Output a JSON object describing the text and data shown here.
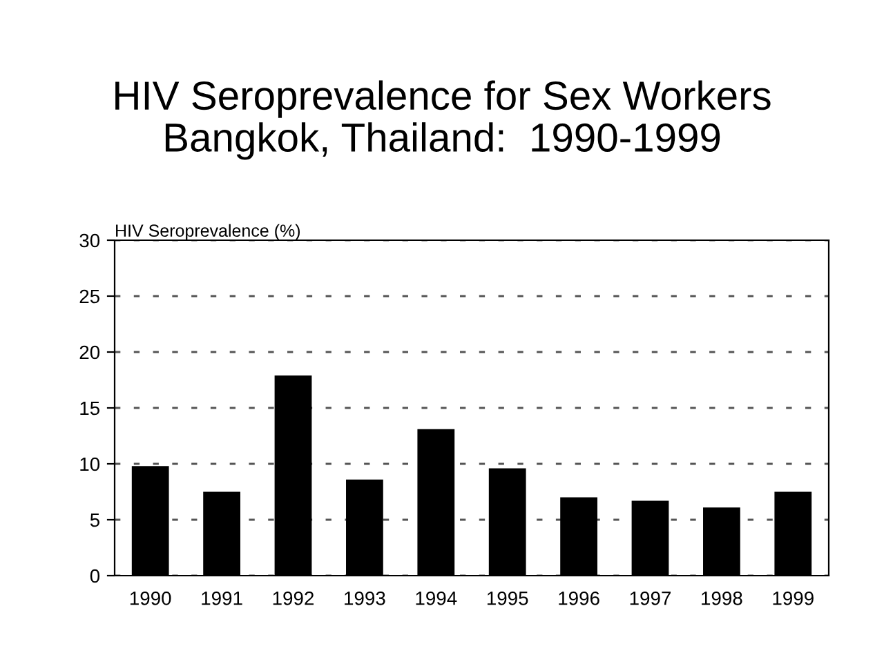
{
  "chart_data": {
    "type": "bar",
    "title": "HIV Seroprevalence for Sex Workers\nBangkok, Thailand:  1990-1999",
    "ylabel": "HIV Seroprevalence (%)",
    "categories": [
      "1990",
      "1991",
      "1992",
      "1993",
      "1994",
      "1995",
      "1996",
      "1997",
      "1998",
      "1999"
    ],
    "values": [
      9.8,
      7.5,
      17.9,
      8.6,
      13.1,
      9.6,
      7.0,
      6.7,
      6.1,
      7.5
    ],
    "color": "#000000",
    "ylim": [
      0,
      30
    ],
    "yticks": [
      0,
      5,
      10,
      15,
      20,
      25,
      30
    ],
    "grid": "y",
    "line_style": "dashed"
  }
}
